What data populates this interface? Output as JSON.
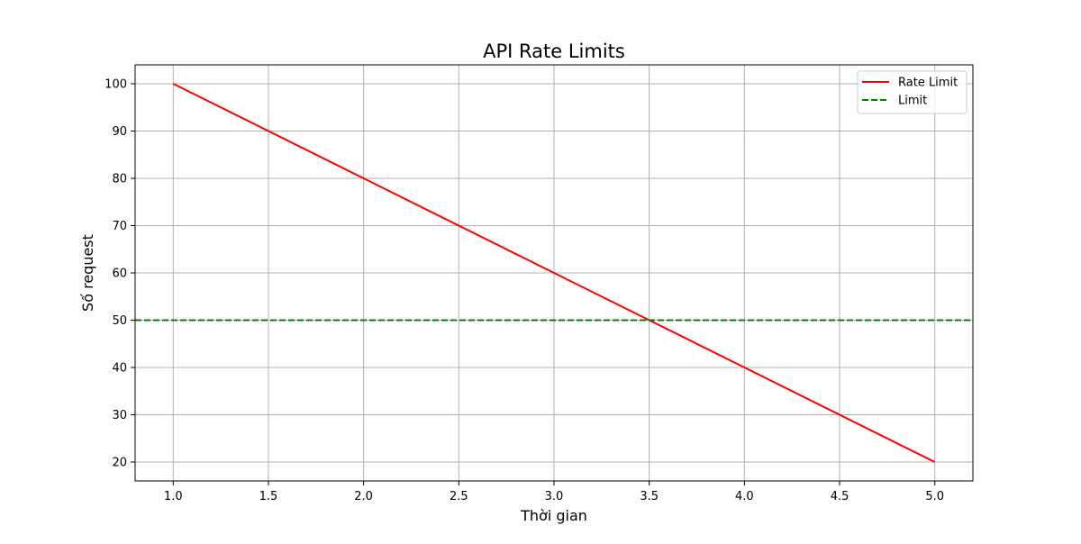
{
  "chart_data": {
    "type": "line",
    "title": "API Rate Limits",
    "xlabel": "Thời gian",
    "ylabel": "Số request",
    "xlim": [
      0.8,
      5.2
    ],
    "ylim": [
      16,
      104
    ],
    "xticks": [
      1.0,
      1.5,
      2.0,
      2.5,
      3.0,
      3.5,
      4.0,
      4.5,
      5.0
    ],
    "xtick_labels": [
      "1.0",
      "1.5",
      "2.0",
      "2.5",
      "3.0",
      "3.5",
      "4.0",
      "4.5",
      "5.0"
    ],
    "yticks": [
      20,
      30,
      40,
      50,
      60,
      70,
      80,
      90,
      100
    ],
    "ytick_labels": [
      "20",
      "30",
      "40",
      "50",
      "60",
      "70",
      "80",
      "90",
      "100"
    ],
    "grid": true,
    "legend_position": "top-right",
    "series": [
      {
        "name": "Rate Limit",
        "style": "solid",
        "color": "#ff0000",
        "x": [
          1,
          2,
          3,
          4,
          5
        ],
        "y": [
          100,
          80,
          60,
          40,
          20
        ]
      },
      {
        "name": "Limit",
        "style": "dashed",
        "color": "#008000",
        "type": "hline",
        "y": 50
      }
    ]
  }
}
